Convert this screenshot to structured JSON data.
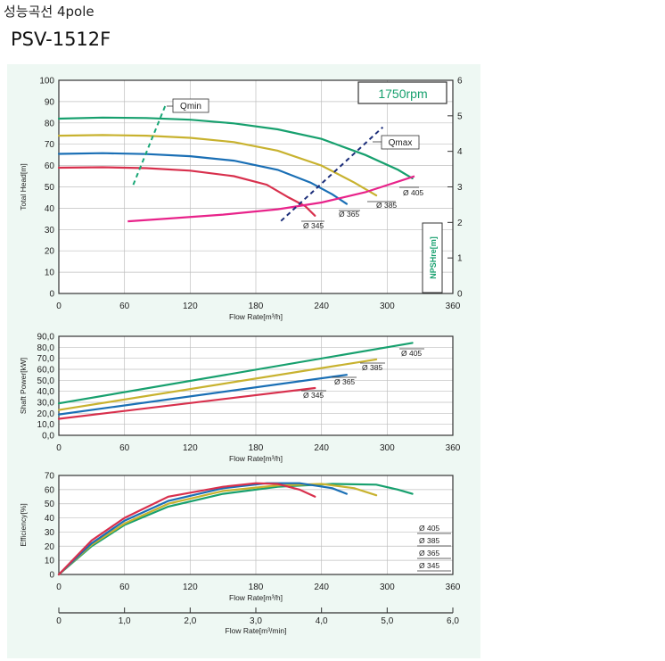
{
  "header": {
    "title": "성능곡선 4pole",
    "model": "PSV-1512F"
  },
  "colors": {
    "d405": "#17a06e",
    "d385": "#c8b22f",
    "d365": "#1a6fb5",
    "d345": "#d8304d",
    "npsh": "#e8238a",
    "qmin": "#1aa777",
    "qmax": "#1c2e7a",
    "rpm": "#17a06e"
  },
  "chart_data": [
    {
      "id": "head",
      "type": "line",
      "ylabel": "Total Head[m]",
      "xlabel": "Flow Rate[m³/h]",
      "y2label": "NPSHre[m]",
      "xlim": [
        0,
        360
      ],
      "ylim": [
        0,
        100
      ],
      "y2lim": [
        0,
        6
      ],
      "xticks": [
        "0",
        "60",
        "120",
        "180",
        "240",
        "300",
        "360"
      ],
      "yticks": [
        "0",
        "10",
        "20",
        "30",
        "40",
        "50",
        "60",
        "70",
        "80",
        "90",
        "100"
      ],
      "y2ticks": [
        "0",
        "1",
        "2",
        "3",
        "4",
        "5",
        "6"
      ],
      "grid": true,
      "speed_label": "1750rpm",
      "series": [
        {
          "name": "Ø 405",
          "color_key": "d405",
          "x": [
            0,
            40,
            80,
            120,
            160,
            200,
            240,
            280,
            310,
            323
          ],
          "y": [
            82,
            82.5,
            82.3,
            81.5,
            79.8,
            77,
            72.5,
            65,
            58,
            54
          ]
        },
        {
          "name": "Ø 385",
          "color_key": "d385",
          "x": [
            0,
            40,
            80,
            120,
            160,
            200,
            240,
            270,
            290
          ],
          "y": [
            74,
            74.3,
            74,
            73,
            71,
            67,
            60,
            52,
            46
          ]
        },
        {
          "name": "Ø 365",
          "color_key": "d365",
          "x": [
            0,
            40,
            80,
            120,
            160,
            200,
            230,
            250,
            263
          ],
          "y": [
            65.5,
            65.8,
            65.4,
            64.4,
            62.3,
            58,
            52,
            46.5,
            42
          ]
        },
        {
          "name": "Ø 345",
          "color_key": "d345",
          "x": [
            0,
            40,
            80,
            120,
            160,
            190,
            210,
            225,
            234
          ],
          "y": [
            59,
            59.2,
            58.8,
            57.6,
            55,
            51,
            45,
            41,
            36.5
          ]
        }
      ],
      "npsh": {
        "color_key": "npsh",
        "x": [
          63,
          100,
          150,
          200,
          240,
          280,
          325
        ],
        "y": [
          2.03,
          2.11,
          2.22,
          2.37,
          2.56,
          2.85,
          3.3
        ]
      },
      "qmin": {
        "label": "Qmin",
        "x": [
          68,
          98
        ],
        "y": [
          51,
          89
        ]
      },
      "qmax": {
        "label": "Qmax",
        "x": [
          203,
          296
        ],
        "y": [
          34,
          78
        ]
      }
    },
    {
      "id": "shaft-power",
      "type": "line",
      "ylabel": "Shaft Power[kW]",
      "xlabel": "Flow Rate[m³/h]",
      "xlim": [
        0,
        360
      ],
      "ylim": [
        0,
        90
      ],
      "xticks": [
        "0",
        "60",
        "120",
        "180",
        "240",
        "300",
        "360"
      ],
      "yticks": [
        "0,0",
        "10,0",
        "20,0",
        "30,0",
        "40,0",
        "50,0",
        "60,0",
        "70,0",
        "80,0",
        "90,0"
      ],
      "grid": true,
      "series": [
        {
          "name": "Ø 405",
          "color_key": "d405",
          "x": [
            0,
            323
          ],
          "y": [
            29,
            84
          ]
        },
        {
          "name": "Ø 385",
          "color_key": "d385",
          "x": [
            0,
            290
          ],
          "y": [
            23,
            69
          ]
        },
        {
          "name": "Ø 365",
          "color_key": "d365",
          "x": [
            0,
            263
          ],
          "y": [
            19,
            55
          ]
        },
        {
          "name": "Ø 345",
          "color_key": "d345",
          "x": [
            0,
            234
          ],
          "y": [
            15,
            43
          ]
        }
      ]
    },
    {
      "id": "efficiency",
      "type": "line",
      "ylabel": "Efficiency[%]",
      "xlabel": "Flow Rate[m³/h]",
      "xlim": [
        0,
        360
      ],
      "ylim": [
        0,
        70
      ],
      "xticks": [
        "0",
        "60",
        "120",
        "180",
        "240",
        "300",
        "360"
      ],
      "yticks": [
        "0",
        "10",
        "20",
        "30",
        "40",
        "50",
        "60",
        "70"
      ],
      "grid": true,
      "legend": [
        "Ø 405",
        "Ø 385",
        "Ø 365",
        "Ø 345"
      ],
      "series": [
        {
          "name": "Ø 405",
          "color_key": "d405",
          "x": [
            0,
            30,
            60,
            100,
            150,
            200,
            250,
            290,
            310,
            323
          ],
          "y": [
            0,
            20,
            35,
            48,
            57,
            62,
            64,
            63.5,
            60,
            57
          ]
        },
        {
          "name": "Ø 385",
          "color_key": "d385",
          "x": [
            0,
            30,
            60,
            100,
            150,
            200,
            240,
            270,
            290
          ],
          "y": [
            0,
            21,
            36,
            50,
            59,
            63,
            64,
            61,
            56
          ]
        },
        {
          "name": "Ø 365",
          "color_key": "d365",
          "x": [
            0,
            30,
            60,
            100,
            150,
            190,
            220,
            250,
            263
          ],
          "y": [
            0,
            22,
            38,
            52,
            61,
            64.5,
            64.5,
            61,
            57
          ]
        },
        {
          "name": "Ø 345",
          "color_key": "d345",
          "x": [
            0,
            30,
            60,
            100,
            150,
            180,
            200,
            220,
            234
          ],
          "y": [
            0,
            24,
            40,
            55,
            62,
            64.5,
            64,
            60,
            55
          ]
        }
      ]
    },
    {
      "id": "flow-min",
      "type": "axis",
      "xlabel": "Flow Rate[m³/min]",
      "xlim": [
        0,
        6
      ],
      "xticks": [
        "0",
        "1,0",
        "2,0",
        "3,0",
        "4,0",
        "5,0",
        "6,0"
      ]
    }
  ]
}
